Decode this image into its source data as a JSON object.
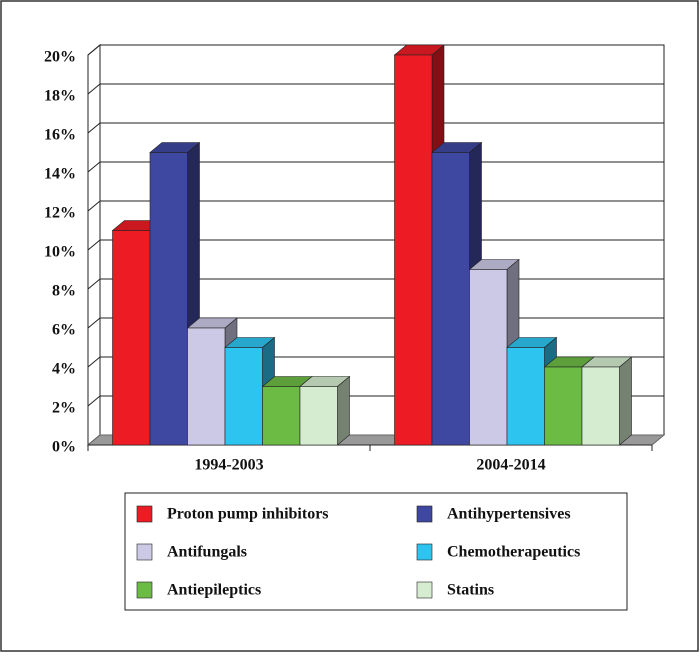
{
  "chart_data": {
    "type": "bar3d",
    "categories": [
      "1994-2003",
      "2004-2014"
    ],
    "series": [
      {
        "name": "Proton pump inhibitors",
        "color": "#ed1c24",
        "values": [
          11,
          20
        ]
      },
      {
        "name": "Antihypertensives",
        "color": "#3f48a0",
        "values": [
          15,
          15
        ]
      },
      {
        "name": "Antifungals",
        "color": "#ccc9e6",
        "values": [
          6,
          9
        ]
      },
      {
        "name": "Chemotherapeutics",
        "color": "#2ec4f0",
        "values": [
          5,
          5
        ]
      },
      {
        "name": "Antiepileptics",
        "color": "#6cbb45",
        "values": [
          3,
          4
        ]
      },
      {
        "name": "Statins",
        "color": "#d5ecd0",
        "values": [
          3,
          4
        ]
      }
    ],
    "ylim": [
      0,
      20
    ],
    "yticks": [
      {
        "value": 0,
        "label": "0%"
      },
      {
        "value": 2,
        "label": "2%"
      },
      {
        "value": 4,
        "label": "4%"
      },
      {
        "value": 6,
        "label": "6%"
      },
      {
        "value": 8,
        "label": "8%"
      },
      {
        "value": 10,
        "label": "10%"
      },
      {
        "value": 12,
        "label": "12%"
      },
      {
        "value": 14,
        "label": "14%"
      },
      {
        "value": 16,
        "label": "16%"
      },
      {
        "value": 18,
        "label": "18%"
      },
      {
        "value": 20,
        "label": "20%"
      }
    ],
    "grid": true
  }
}
